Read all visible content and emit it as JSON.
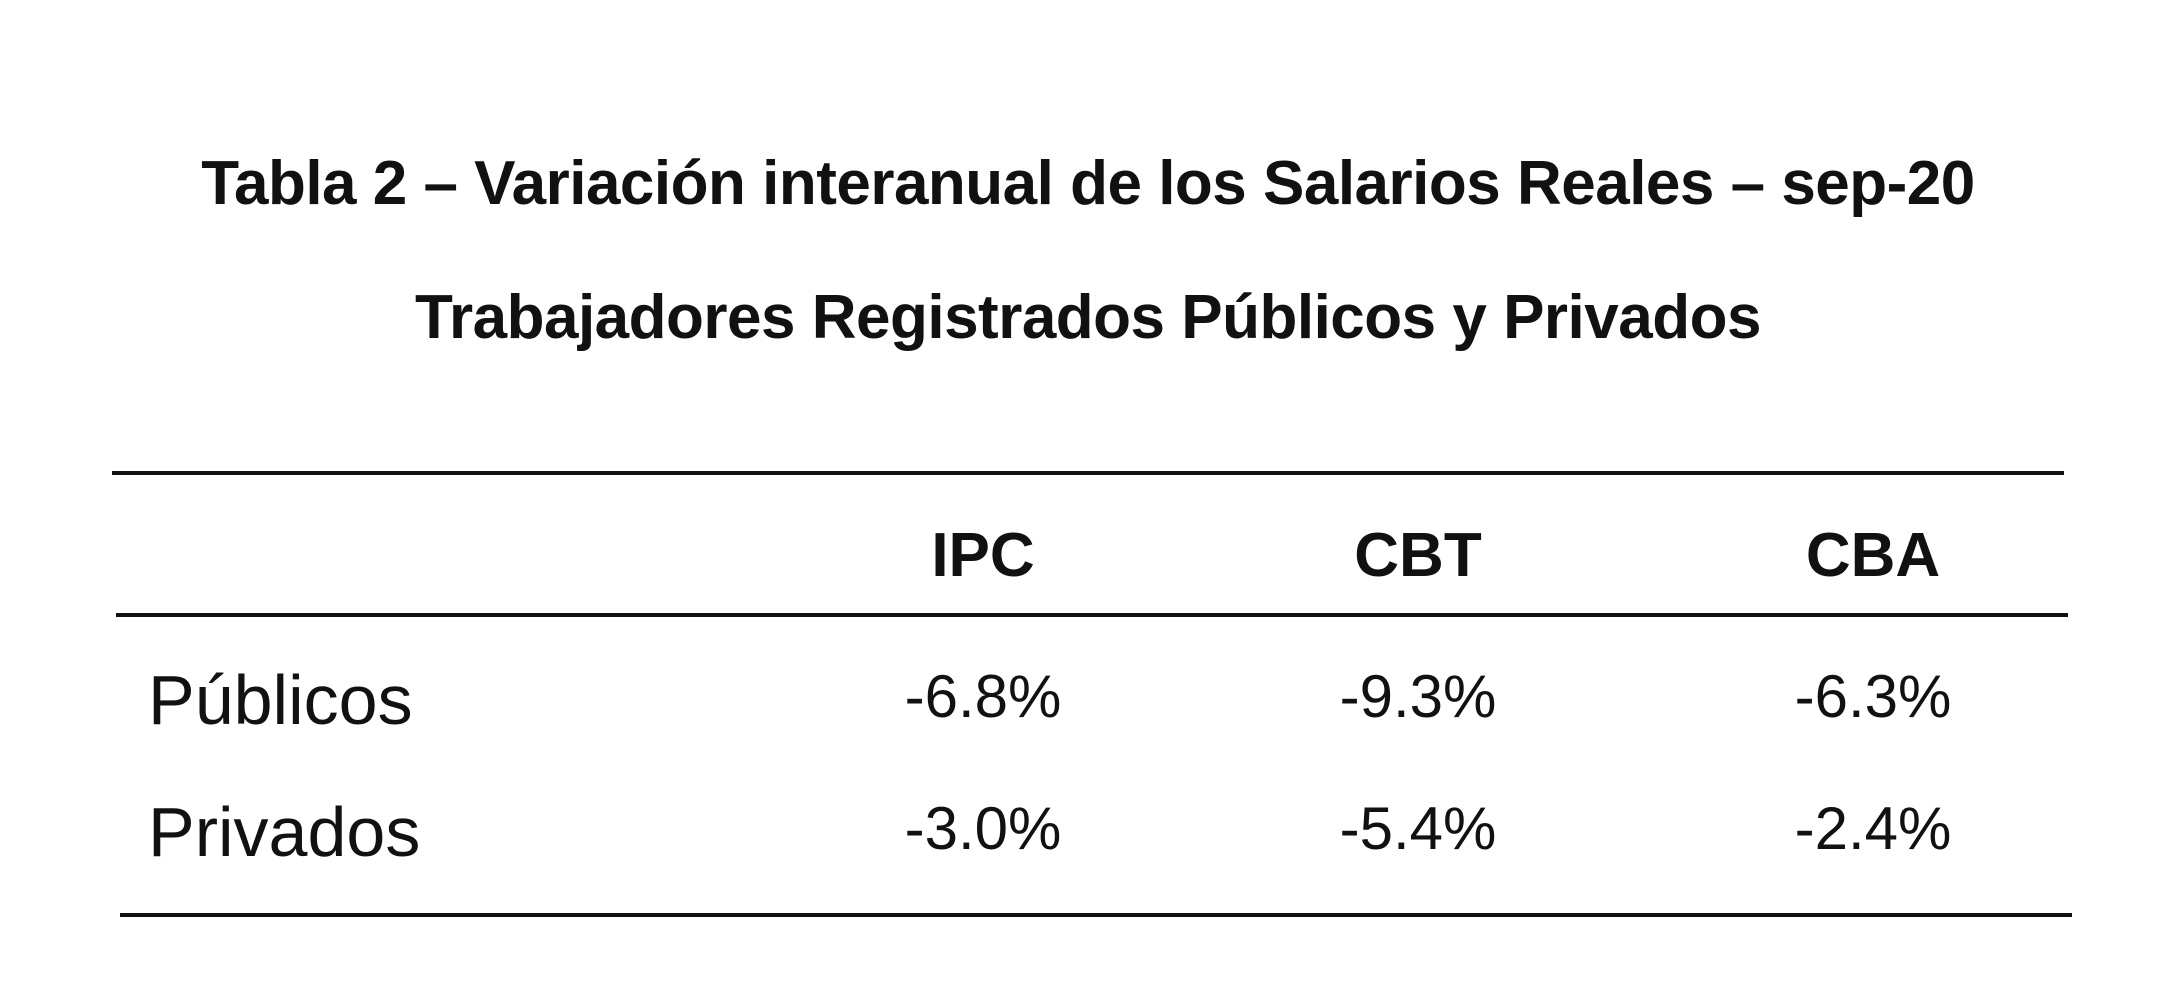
{
  "title": {
    "line1": "Tabla 2 – Variación interanual de los Salarios Reales – sep-20",
    "line2": "Trabajadores Registrados Públicos y Privados"
  },
  "table": {
    "columns": [
      "IPC",
      "CBT",
      "CBA"
    ],
    "rows": [
      {
        "label": "Públicos",
        "values": [
          "-6.8%",
          "-9.3%",
          "-6.3%"
        ]
      },
      {
        "label": "Privados",
        "values": [
          "-3.0%",
          "-5.4%",
          "-2.4%"
        ]
      }
    ]
  }
}
